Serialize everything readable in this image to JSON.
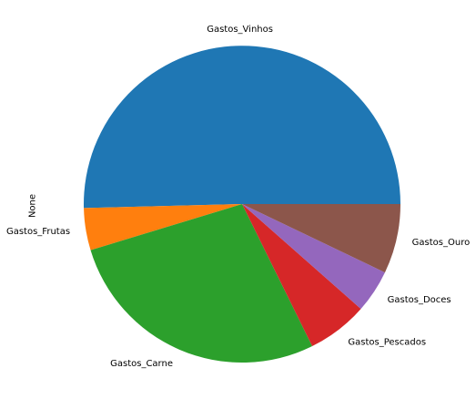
{
  "chart_data": {
    "type": "pie",
    "title": "",
    "ylabel": "None",
    "start_angle_deg": 0,
    "direction": "counterclockwise",
    "slices": [
      {
        "label": "Gastos_Vinhos",
        "value": 50.4,
        "color": "#1f77b4"
      },
      {
        "label": "Gastos_Frutas",
        "value": 4.3,
        "color": "#ff7f0e"
      },
      {
        "label": "Gastos_Carne",
        "value": 27.6,
        "color": "#2ca02c"
      },
      {
        "label": "Gastos_Pescados",
        "value": 6.2,
        "color": "#d62728"
      },
      {
        "label": "Gastos_Doces",
        "value": 4.4,
        "color": "#9467bd"
      },
      {
        "label": "Gastos_Ouro",
        "value": 7.1,
        "color": "#8c564b"
      }
    ]
  }
}
